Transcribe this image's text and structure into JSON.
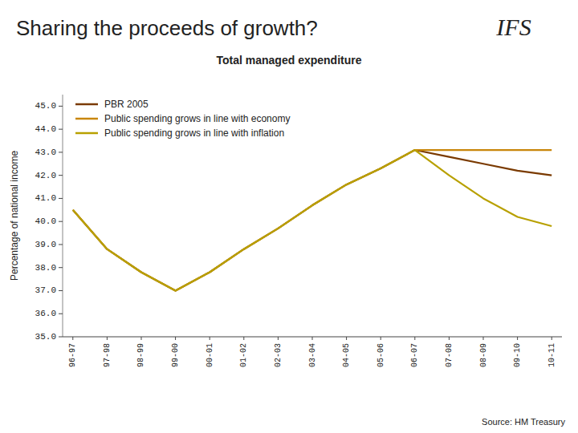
{
  "chart_data": {
    "type": "line",
    "title": "Sharing the proceeds of growth?",
    "subtitle": "Total managed expenditure",
    "source": "Source: HM Treasury",
    "annotations": [
      "IFS"
    ],
    "ylabel": "Percentage of national income",
    "categories": [
      "96-97",
      "97-98",
      "98-99",
      "99-00",
      "00-01",
      "01-02",
      "02-03",
      "03-04",
      "04-05",
      "05-06",
      "06-07",
      "07-08",
      "08-09",
      "09-10",
      "10-11"
    ],
    "series": [
      {
        "name": "PBR 2005",
        "color": "#7a3a00",
        "values": [
          40.5,
          38.8,
          37.8,
          37.0,
          37.8,
          38.8,
          39.7,
          40.7,
          41.6,
          42.3,
          43.1,
          42.8,
          42.5,
          42.2,
          42.0
        ]
      },
      {
        "name": "Public spending grows in line with economy",
        "color": "#c8860a",
        "values": [
          40.5,
          38.8,
          37.8,
          37.0,
          37.8,
          38.8,
          39.7,
          40.7,
          41.6,
          42.3,
          43.1,
          43.1,
          43.1,
          43.1,
          43.1
        ]
      },
      {
        "name": "Public spending grows in line with inflation",
        "color": "#b8a000",
        "values": [
          40.5,
          38.8,
          37.8,
          37.0,
          37.8,
          38.8,
          39.7,
          40.7,
          41.6,
          42.3,
          43.1,
          42.0,
          41.0,
          40.2,
          39.8
        ]
      }
    ],
    "ylim": [
      35.0,
      45.5
    ],
    "yticks": [
      {
        "value": 35.0,
        "label": "35.0"
      },
      {
        "value": 36.0,
        "label": "36.0"
      },
      {
        "value": 37.0,
        "label": "37.0"
      },
      {
        "value": 38.0,
        "label": "38.0"
      },
      {
        "value": 39.0,
        "label": "39.0"
      },
      {
        "value": 40.0,
        "label": "40.0"
      },
      {
        "value": 41.0,
        "label": "41.0"
      },
      {
        "value": 42.0,
        "label": "42.0"
      },
      {
        "value": 43.0,
        "label": "43.0"
      },
      {
        "value": 44.0,
        "label": "44.0"
      },
      {
        "value": 45.0,
        "label": "45.0"
      }
    ],
    "grid": false,
    "legend": "upper left"
  }
}
